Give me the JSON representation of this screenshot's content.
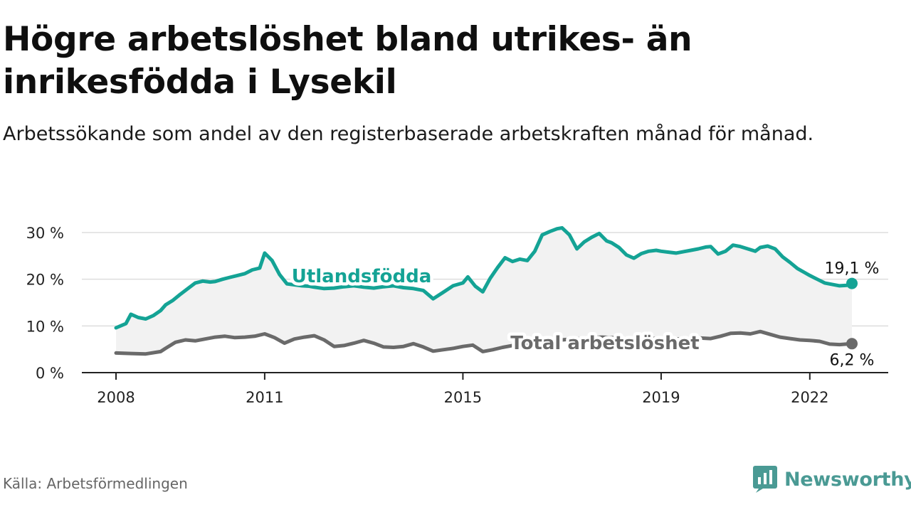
{
  "title": "Högre arbetslöshet bland utrikes- än inrikesfödda i Lysekil",
  "subtitle": "Arbetssökande som andel av den registerbaserade arbetskraften månad för månad.",
  "source": "Källa: Arbetsförmedlingen",
  "brand": "Newsworthy",
  "colors": {
    "utlandsfodda": "#14a395",
    "total": "#6a6a6a",
    "area": "#f2f2f2",
    "grid": "#dddddd",
    "brand": "#4a9a94"
  },
  "chart_data": {
    "type": "line",
    "title": "Högre arbetslöshet bland utrikes- än inrikesfödda i Lysekil",
    "xlabel": "",
    "ylabel": "",
    "xlim": [
      2008.0,
      2022.85
    ],
    "ylim": [
      0,
      30
    ],
    "y_ticks": [
      0,
      10,
      20,
      30
    ],
    "y_tick_labels": [
      "0 %",
      "10 %",
      "20 %",
      "30 %"
    ],
    "x_ticks": [
      2008,
      2011,
      2015,
      2019,
      2022
    ],
    "x_tick_labels": [
      "2008",
      "2011",
      "2015",
      "2019",
      "2022"
    ],
    "grid": true,
    "series": [
      {
        "name": "Utlandsfödda",
        "label": "Utlandsfödda",
        "end_label": "19,1 %",
        "x": [
          2008.0,
          2008.2,
          2008.3,
          2008.45,
          2008.6,
          2008.75,
          2008.9,
          2009.0,
          2009.15,
          2009.3,
          2009.45,
          2009.6,
          2009.75,
          2009.9,
          2010.0,
          2010.15,
          2010.3,
          2010.45,
          2010.6,
          2010.75,
          2010.9,
          2011.0,
          2011.15,
          2011.3,
          2011.45,
          2011.6,
          2011.75,
          2011.9,
          2012.0,
          2012.2,
          2012.4,
          2012.6,
          2012.8,
          2013.0,
          2013.2,
          2013.4,
          2013.6,
          2013.8,
          2014.0,
          2014.2,
          2014.4,
          2014.6,
          2014.8,
          2015.0,
          2015.1,
          2015.25,
          2015.4,
          2015.55,
          2015.7,
          2015.85,
          2016.0,
          2016.15,
          2016.3,
          2016.45,
          2016.6,
          2016.75,
          2016.9,
          2017.0,
          2017.15,
          2017.3,
          2017.45,
          2017.6,
          2017.75,
          2017.9,
          2018.0,
          2018.15,
          2018.3,
          2018.45,
          2018.6,
          2018.75,
          2018.9,
          2019.0,
          2019.15,
          2019.3,
          2019.45,
          2019.6,
          2019.75,
          2019.9,
          2020.0,
          2020.15,
          2020.3,
          2020.45,
          2020.6,
          2020.75,
          2020.9,
          2021.0,
          2021.15,
          2021.3,
          2021.45,
          2021.6,
          2021.75,
          2021.9,
          2022.0,
          2022.15,
          2022.3,
          2022.45,
          2022.6,
          2022.75,
          2022.85
        ],
        "values": [
          9.6,
          10.5,
          12.5,
          11.8,
          11.5,
          12.2,
          13.3,
          14.5,
          15.5,
          16.8,
          18.0,
          19.2,
          19.6,
          19.4,
          19.5,
          20.0,
          20.4,
          20.8,
          21.2,
          22.0,
          22.4,
          25.6,
          24.0,
          21.0,
          19.0,
          18.8,
          18.6,
          18.5,
          18.3,
          18.0,
          18.1,
          18.4,
          18.6,
          18.3,
          18.1,
          18.4,
          18.6,
          18.2,
          18.0,
          17.6,
          15.8,
          17.2,
          18.6,
          19.2,
          20.5,
          18.5,
          17.3,
          20.2,
          22.5,
          24.6,
          23.8,
          24.3,
          24.0,
          26.0,
          29.5,
          30.2,
          30.8,
          31.0,
          29.5,
          26.5,
          28.0,
          29.0,
          29.8,
          28.2,
          27.8,
          26.8,
          25.2,
          24.5,
          25.5,
          26.0,
          26.2,
          26.0,
          25.8,
          25.6,
          25.9,
          26.2,
          26.5,
          26.9,
          27.0,
          25.4,
          26.0,
          27.3,
          27.0,
          26.5,
          26.0,
          26.8,
          27.1,
          26.5,
          24.8,
          23.6,
          22.3,
          21.4,
          20.8,
          20.0,
          19.2,
          18.9,
          18.6,
          18.7,
          19.1
        ]
      },
      {
        "name": "Total arbetslöshet",
        "label": "Total arbetslöshet",
        "end_label": "6,2 %",
        "x": [
          2008.0,
          2008.3,
          2008.6,
          2008.9,
          2009.0,
          2009.2,
          2009.4,
          2009.6,
          2009.8,
          2010.0,
          2010.2,
          2010.4,
          2010.6,
          2010.8,
          2011.0,
          2011.2,
          2011.4,
          2011.6,
          2011.8,
          2012.0,
          2012.2,
          2012.4,
          2012.6,
          2012.8,
          2013.0,
          2013.2,
          2013.4,
          2013.6,
          2013.8,
          2014.0,
          2014.2,
          2014.4,
          2014.6,
          2014.8,
          2015.0,
          2015.2,
          2015.4,
          2015.6,
          2015.8,
          2016.0,
          2016.2,
          2016.4,
          2016.6,
          2016.8,
          2017.0,
          2017.2,
          2017.4,
          2017.6,
          2017.8,
          2018.0,
          2018.2,
          2018.4,
          2018.6,
          2018.8,
          2019.0,
          2019.2,
          2019.4,
          2019.6,
          2019.8,
          2020.0,
          2020.2,
          2020.4,
          2020.6,
          2020.8,
          2021.0,
          2021.2,
          2021.4,
          2021.6,
          2021.8,
          2022.0,
          2022.2,
          2022.4,
          2022.6,
          2022.85
        ],
        "values": [
          4.2,
          4.1,
          4.0,
          4.5,
          5.2,
          6.5,
          7.0,
          6.8,
          7.2,
          7.6,
          7.8,
          7.5,
          7.6,
          7.8,
          8.3,
          7.5,
          6.3,
          7.2,
          7.6,
          7.9,
          7.0,
          5.6,
          5.8,
          6.3,
          6.9,
          6.3,
          5.5,
          5.4,
          5.6,
          6.2,
          5.5,
          4.6,
          4.9,
          5.2,
          5.6,
          5.9,
          4.5,
          4.9,
          5.4,
          5.8,
          6.0,
          6.3,
          6.5,
          6.7,
          7.0,
          7.2,
          7.3,
          7.5,
          7.6,
          7.5,
          7.4,
          7.3,
          7.2,
          7.3,
          7.4,
          7.3,
          7.2,
          7.3,
          7.4,
          7.3,
          7.8,
          8.4,
          8.5,
          8.3,
          8.8,
          8.2,
          7.6,
          7.3,
          7.0,
          6.9,
          6.7,
          6.1,
          6.0,
          6.2
        ]
      }
    ]
  }
}
